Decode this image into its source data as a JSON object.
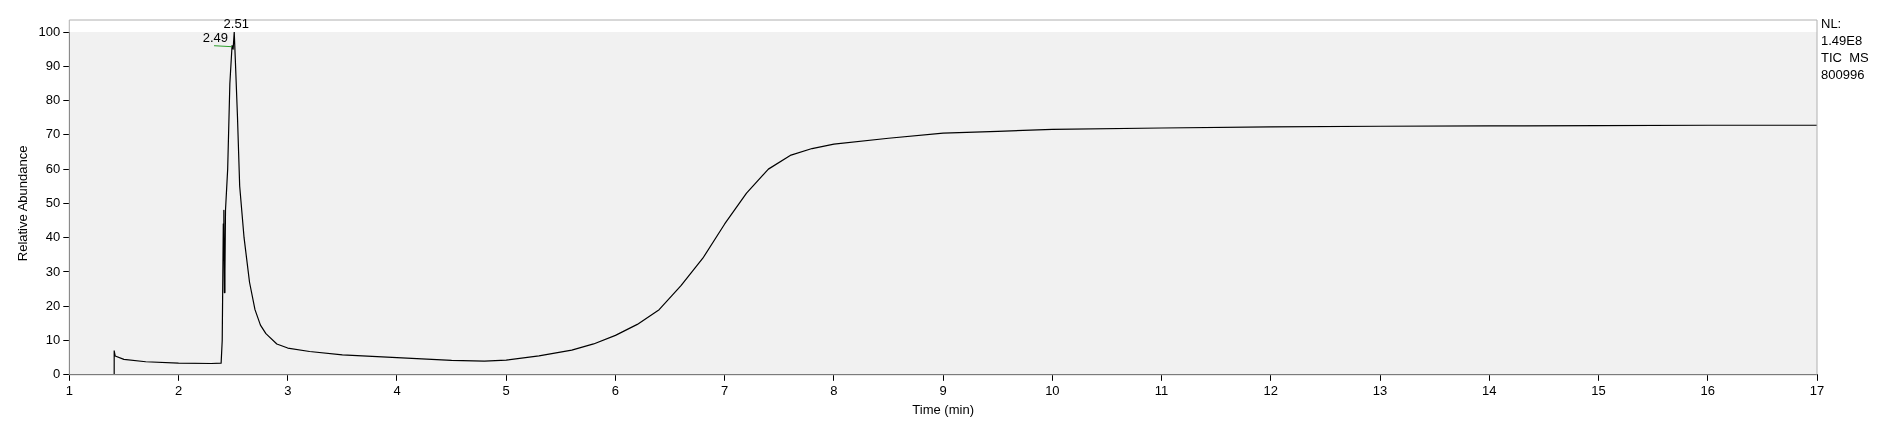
{
  "chart_data": {
    "type": "line",
    "xlabel": "Time (min)",
    "ylabel": "Relative Abundance",
    "x": [
      1.0,
      1.4,
      1.41,
      1.411,
      1.42,
      1.5,
      1.7,
      2.0,
      2.3,
      2.39,
      2.4,
      2.41,
      2.415,
      2.42,
      2.425,
      2.43,
      2.45,
      2.47,
      2.49,
      2.5,
      2.51,
      2.52,
      2.54,
      2.56,
      2.6,
      2.65,
      2.7,
      2.75,
      2.8,
      2.9,
      3.0,
      3.2,
      3.5,
      4.0,
      4.5,
      4.8,
      5.0,
      5.3,
      5.6,
      5.8,
      6.0,
      6.2,
      6.4,
      6.6,
      6.8,
      7.0,
      7.2,
      7.4,
      7.6,
      7.8,
      8.0,
      8.5,
      9.0,
      9.5,
      10,
      11,
      12,
      13,
      14,
      15,
      16,
      17
    ],
    "values": [
      0,
      0,
      0,
      7,
      5.5,
      4.5,
      3.8,
      3.4,
      3.3,
      3.4,
      10,
      44,
      48,
      24,
      30,
      48,
      60,
      85,
      96,
      95,
      100,
      92,
      75,
      55,
      40,
      27,
      19,
      14.5,
      12,
      9,
      7.8,
      6.8,
      5.8,
      5,
      4.2,
      4,
      4.3,
      5.5,
      7.2,
      9,
      11.5,
      14.7,
      19,
      26,
      34,
      44,
      53,
      60,
      64,
      66,
      67.3,
      69,
      70.5,
      71,
      71.6,
      72,
      72.3,
      72.5,
      72.6,
      72.7,
      72.8,
      72.8
    ],
    "color": "#000000",
    "marker": "none",
    "line_style": "solid",
    "xlim": [
      1,
      17
    ],
    "xticks": [
      1,
      2,
      3,
      4,
      5,
      6,
      7,
      8,
      9,
      10,
      11,
      12,
      13,
      14,
      15,
      16,
      17
    ],
    "ylim": [
      0,
      100
    ],
    "yticks": [
      0,
      10,
      20,
      30,
      40,
      50,
      60,
      70,
      80,
      90,
      100
    ],
    "grid": false,
    "legend": false,
    "annotations": [
      {
        "text": "2.51",
        "x": 2.51,
        "y": 100
      },
      {
        "text": "2.49",
        "x": 2.49,
        "y": 96
      },
      "NL:\n1.49E8",
      "TIC  MS\n800996"
    ]
  }
}
